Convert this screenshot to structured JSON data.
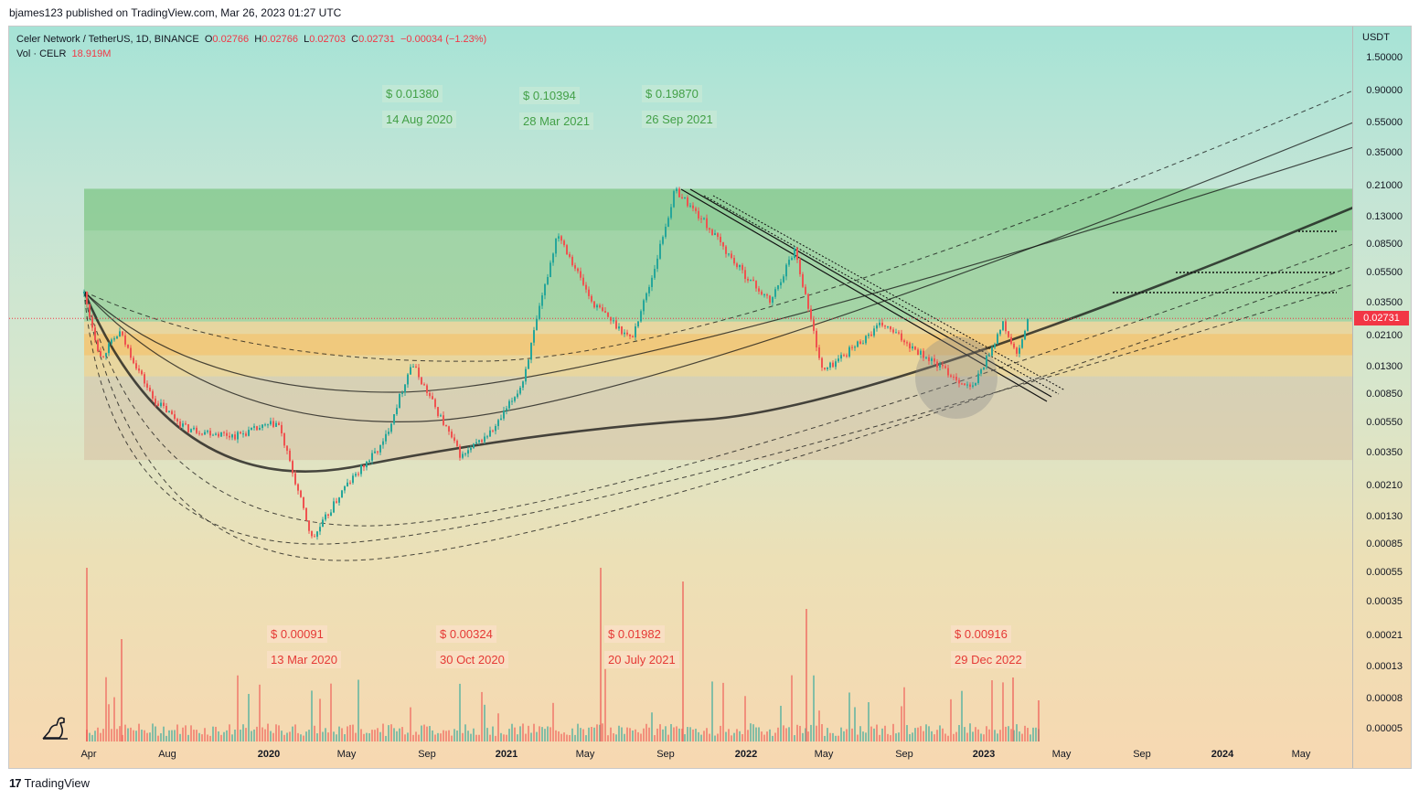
{
  "header": {
    "published": "bjames123 published on TradingView.com, Mar 26, 2023 01:27 UTC"
  },
  "legend": {
    "symbol": "Celer Network / TetherUS, 1D, BINANCE",
    "o_label": "O",
    "o": "0.02766",
    "h_label": "H",
    "h": "0.02766",
    "l_label": "L",
    "l": "0.02703",
    "c_label": "C",
    "c": "0.02731",
    "change": "−0.00034 (−1.23%)",
    "vol_label": "Vol · CELR",
    "vol": "18.919M"
  },
  "chart_data": {
    "type": "candlestick",
    "symbol": "CELRUSDT",
    "scale": "log",
    "currency_label": "USDT",
    "y_ticks": [
      "1.50000",
      "0.90000",
      "0.55000",
      "0.35000",
      "0.21000",
      "0.13000",
      "0.08500",
      "0.05500",
      "0.03500",
      "0.02100",
      "0.01300",
      "0.00850",
      "0.00550",
      "0.00350",
      "0.00210",
      "0.00130",
      "0.00085",
      "0.00055",
      "0.00035",
      "0.00021",
      "0.00013",
      "0.00008",
      "0.00005"
    ],
    "x_ticks": [
      "Apr",
      "Aug",
      "2020",
      "May",
      "Sep",
      "2021",
      "May",
      "Sep",
      "2022",
      "May",
      "Sep",
      "2023",
      "May",
      "Sep",
      "2024",
      "May"
    ],
    "last_price": "0.02731",
    "price_path": [
      [
        "2019-03-26",
        0.04
      ],
      [
        "2019-04-20",
        0.015
      ],
      [
        "2019-05-20",
        0.022
      ],
      [
        "2019-07-10",
        0.008
      ],
      [
        "2019-09-01",
        0.005
      ],
      [
        "2019-11-15",
        0.0045
      ],
      [
        "2020-01-20",
        0.0055
      ],
      [
        "2020-03-13",
        0.00091
      ],
      [
        "2020-05-01",
        0.002
      ],
      [
        "2020-07-01",
        0.004
      ],
      [
        "2020-08-14",
        0.0138
      ],
      [
        "2020-10-30",
        0.00324
      ],
      [
        "2020-12-20",
        0.005
      ],
      [
        "2021-02-01",
        0.01
      ],
      [
        "2021-03-28",
        0.10394
      ],
      [
        "2021-05-20",
        0.035
      ],
      [
        "2021-07-20",
        0.01982
      ],
      [
        "2021-08-20",
        0.05
      ],
      [
        "2021-09-26",
        0.1987
      ],
      [
        "2021-11-10",
        0.12
      ],
      [
        "2022-01-01",
        0.06
      ],
      [
        "2022-02-20",
        0.035
      ],
      [
        "2022-03-30",
        0.08
      ],
      [
        "2022-05-12",
        0.012
      ],
      [
        "2022-08-12",
        0.025
      ],
      [
        "2022-10-20",
        0.015
      ],
      [
        "2022-12-29",
        0.00916
      ],
      [
        "2023-02-15",
        0.025
      ],
      [
        "2023-03-10",
        0.015
      ],
      [
        "2023-03-26",
        0.02731
      ]
    ],
    "annotations_high": [
      {
        "price": "$ 0.01380",
        "date": "14 Aug 2020"
      },
      {
        "price": "$ 0.10394",
        "date": "28 Mar 2021"
      },
      {
        "price": "$ 0.19870",
        "date": "26 Sep 2021"
      }
    ],
    "annotations_low": [
      {
        "price": "$ 0.00091",
        "date": "13 Mar 2020"
      },
      {
        "price": "$ 0.00324",
        "date": "30 Oct 2020"
      },
      {
        "price": "$ 0.01982",
        "date": "20 July 2021"
      },
      {
        "price": "$ 0.00916",
        "date": "29 Dec 2022"
      }
    ],
    "zones": [
      {
        "name": "green",
        "from": 0.105,
        "to": 0.2,
        "color": "#66bb6a"
      },
      {
        "name": "green-light",
        "from": 0.026,
        "to": 0.105,
        "color": "#81c784"
      },
      {
        "name": "orange",
        "from": 0.0155,
        "to": 0.0215,
        "color": "#f5b041"
      },
      {
        "name": "orange-light",
        "from": 0.0112,
        "to": 0.026,
        "color": "#f7c87a"
      },
      {
        "name": "tan",
        "from": 0.0031,
        "to": 0.0112,
        "color": "#d7bfa3"
      }
    ]
  },
  "footer": {
    "brand": "TradingView"
  },
  "colors": {
    "up": "#26a69a",
    "down": "#ef5350",
    "price_tag": "#f23645"
  }
}
